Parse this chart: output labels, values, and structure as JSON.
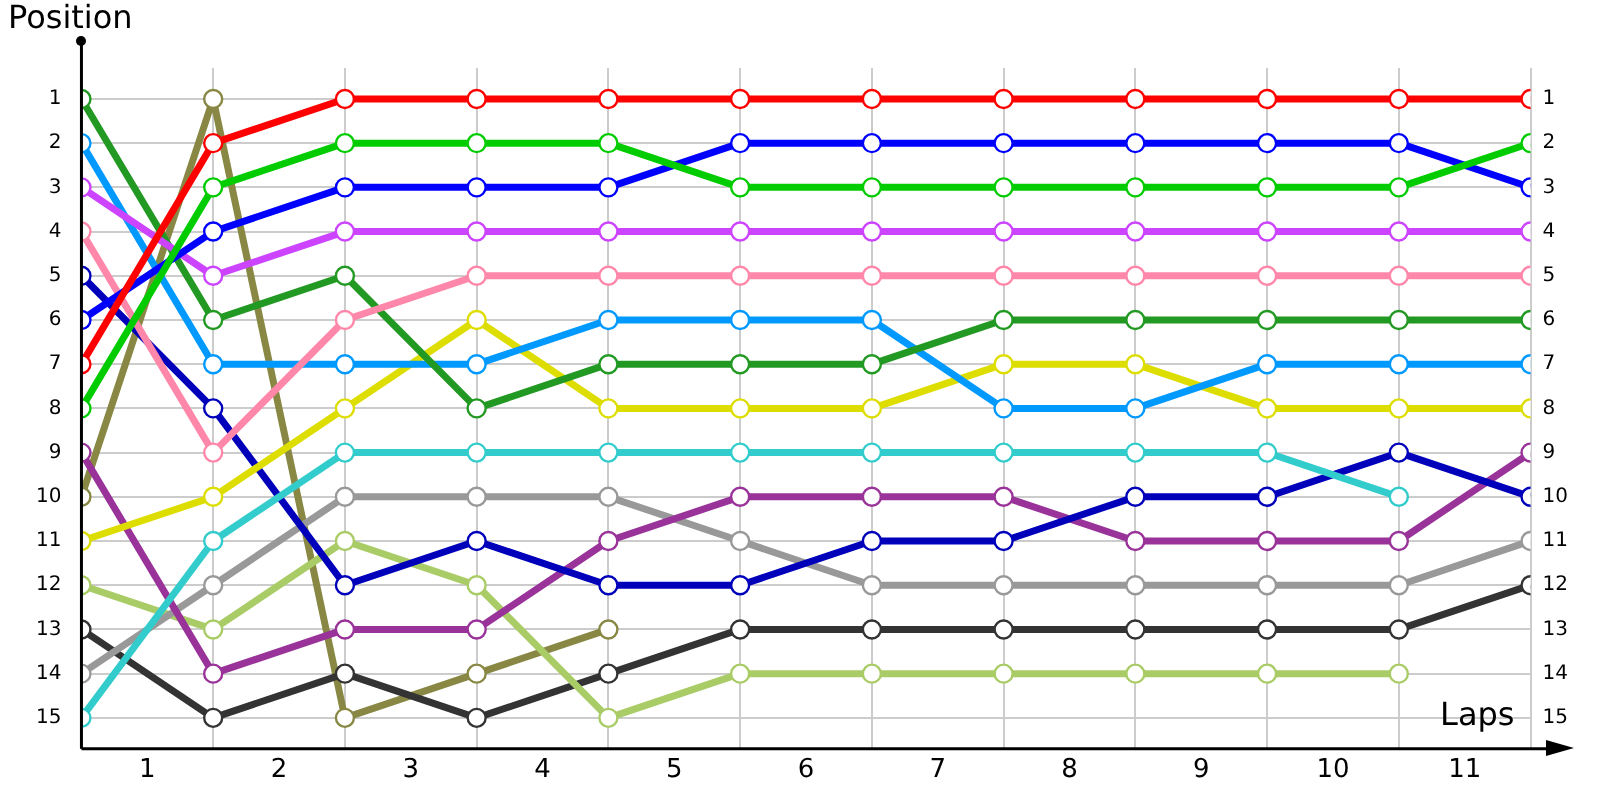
{
  "chart_data": {
    "type": "line",
    "xlabel": "Laps",
    "ylabel": "Position",
    "marker": "circle",
    "grid": true,
    "legend": false,
    "x": [
      0,
      1,
      2,
      3,
      4,
      5,
      6,
      7,
      8,
      9,
      10,
      11
    ],
    "xlim": [
      0,
      11
    ],
    "xticks": [
      {
        "value": 0,
        "label": null
      },
      {
        "value": 0.5,
        "label": "1"
      },
      {
        "value": 1,
        "label": null
      },
      {
        "value": 1.5,
        "label": "2"
      },
      {
        "value": 2,
        "label": null
      },
      {
        "value": 2.5,
        "label": "3"
      },
      {
        "value": 3,
        "label": null
      },
      {
        "value": 3.5,
        "label": "4"
      },
      {
        "value": 4,
        "label": null
      },
      {
        "value": 4.5,
        "label": "5"
      },
      {
        "value": 5,
        "label": null
      },
      {
        "value": 5.5,
        "label": "6"
      },
      {
        "value": 6,
        "label": null
      },
      {
        "value": 6.5,
        "label": "7"
      },
      {
        "value": 7,
        "label": null
      },
      {
        "value": 7.5,
        "label": "8"
      },
      {
        "value": 8,
        "label": null
      },
      {
        "value": 8.5,
        "label": "9"
      },
      {
        "value": 9,
        "label": null
      },
      {
        "value": 9.5,
        "label": "10"
      },
      {
        "value": 10,
        "label": null
      },
      {
        "value": 10.5,
        "label": "11"
      },
      {
        "value": 11,
        "label": null
      }
    ],
    "ylim": [
      15.7,
      0.3
    ],
    "yticks": [
      1,
      2,
      3,
      4,
      5,
      6,
      7,
      8,
      9,
      10,
      11,
      12,
      13,
      14,
      15
    ],
    "y2lim": [
      15.7,
      0.3
    ],
    "y2ticks": [
      1,
      2,
      3,
      4,
      5,
      6,
      7,
      8,
      9,
      10,
      11,
      12,
      13,
      14,
      15
    ],
    "series": [
      {
        "color": "#ff0000",
        "values": [
          7,
          2,
          1,
          1,
          1,
          1,
          1,
          1,
          1,
          1,
          1,
          1
        ]
      },
      {
        "color": "#00cc00",
        "values": [
          8,
          3,
          2,
          2,
          2,
          3,
          3,
          3,
          3,
          3,
          3,
          2
        ]
      },
      {
        "color": "#0000ff",
        "values": [
          6,
          4,
          3,
          3,
          3,
          2,
          2,
          2,
          2,
          2,
          2,
          3
        ]
      },
      {
        "color": "#cc44ff",
        "values": [
          3,
          5,
          4,
          4,
          4,
          4,
          4,
          4,
          4,
          4,
          4,
          4
        ]
      },
      {
        "color": "#ff88aa",
        "values": [
          4,
          9,
          6,
          5,
          5,
          5,
          5,
          5,
          5,
          5,
          5,
          5
        ]
      },
      {
        "color": "#229922",
        "values": [
          1,
          6,
          5,
          8,
          7,
          7,
          7,
          6,
          6,
          6,
          6,
          6
        ]
      },
      {
        "color": "#0099ff",
        "values": [
          2,
          7,
          7,
          7,
          6,
          6,
          6,
          8,
          8,
          7,
          7,
          7
        ]
      },
      {
        "color": "#dddd00",
        "values": [
          11,
          10,
          8,
          6,
          8,
          8,
          8,
          7,
          7,
          8,
          8,
          8
        ]
      },
      {
        "color": "#33cccc",
        "values": [
          15,
          11,
          9,
          9,
          9,
          9,
          9,
          9,
          9,
          9,
          10,
          null
        ]
      },
      {
        "color": "#0000bb",
        "values": [
          5,
          8,
          12,
          11,
          12,
          12,
          11,
          11,
          10,
          10,
          9,
          10
        ]
      },
      {
        "color": "#993399",
        "values": [
          9,
          14,
          13,
          13,
          11,
          10,
          10,
          10,
          11,
          11,
          11,
          9
        ]
      },
      {
        "color": "#999999",
        "values": [
          14,
          12,
          10,
          10,
          10,
          11,
          12,
          12,
          12,
          12,
          12,
          11
        ]
      },
      {
        "color": "#aacc66",
        "values": [
          12,
          13,
          11,
          12,
          15,
          14,
          14,
          14,
          14,
          14,
          14,
          null
        ]
      },
      {
        "color": "#333333",
        "values": [
          13,
          15,
          14,
          15,
          14,
          13,
          13,
          13,
          13,
          13,
          13,
          12
        ]
      },
      {
        "color": "#888844",
        "values": [
          10,
          1,
          15,
          14,
          13,
          null,
          null,
          null,
          null,
          null,
          null,
          null
        ]
      }
    ]
  }
}
